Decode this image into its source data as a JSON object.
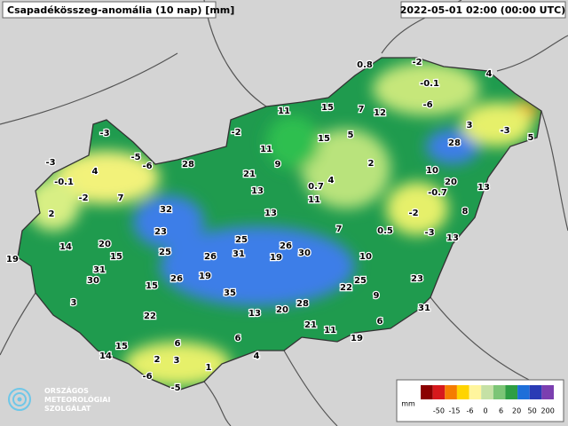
{
  "header": {
    "title": "Csapadékösszeg-anomália (10 nap) [mm]",
    "timestamp": "2022-05-01 02:00 (00:00 UTC)"
  },
  "stations": [
    0.8,
    -2,
    4,
    -0.1,
    -6,
    11,
    15,
    7,
    12,
    -3,
    -2,
    15,
    5,
    3,
    -3,
    5,
    28,
    11,
    -5,
    -3,
    -6,
    4,
    28,
    9,
    2,
    10,
    21,
    -0.1,
    4,
    20,
    0.7,
    -2,
    7,
    13,
    11,
    -0.7,
    13,
    32,
    13,
    -2,
    8,
    2,
    23,
    7,
    0.5,
    -3,
    13,
    20,
    14,
    25,
    26,
    15,
    25,
    26,
    31,
    19,
    30,
    10,
    19,
    31,
    30,
    19,
    26,
    15,
    22,
    25,
    23,
    35,
    9,
    3,
    28,
    13,
    20,
    31,
    22,
    6,
    21,
    11,
    19,
    6,
    15,
    6,
    14,
    2,
    3,
    4,
    1,
    -6,
    -5
  ],
  "legend": {
    "unit": "mm",
    "labels": [
      "-50",
      "-15",
      "-6",
      "0",
      "6",
      "20",
      "50",
      "200"
    ]
  },
  "logo": {
    "lines": [
      "ORSZÁGOS",
      "METEOROLÓGIAI",
      "SZOLGÁLAT"
    ]
  }
}
